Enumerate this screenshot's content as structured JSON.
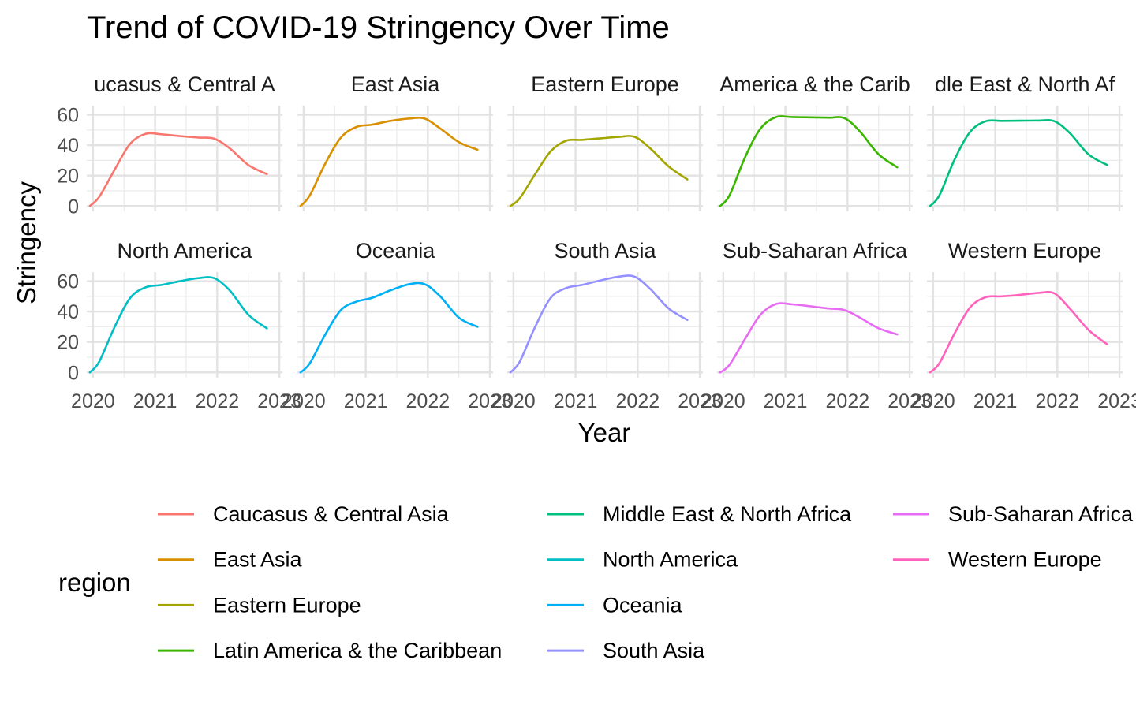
{
  "chart_data": {
    "type": "line",
    "title": "Trend of COVID-19 Stringency Over Time",
    "xlabel": "Year",
    "ylabel": "Stringency",
    "x_ticks": [
      2020,
      2021,
      2022,
      2023
    ],
    "y_ticks": [
      0,
      20,
      40,
      60
    ],
    "xlim": [
      2019.9,
      2023.05
    ],
    "ylim": [
      -3.5,
      66
    ],
    "grid": true,
    "legend_title": "region",
    "legend_position": "bottom",
    "facets": [
      {
        "name": "Caucasus & Central Asia",
        "strip_label": "ucasus & Central A",
        "color": "#F8766D",
        "x": [
          2019.95,
          2020.1,
          2020.35,
          2020.6,
          2020.85,
          2021.1,
          2021.4,
          2021.7,
          2021.95,
          2022.2,
          2022.5,
          2022.8
        ],
        "y": [
          0,
          6,
          24,
          41,
          47.5,
          47.2,
          46,
          45,
          44.3,
          38,
          27,
          21
        ]
      },
      {
        "name": "East Asia",
        "strip_label": "East Asia",
        "color": "#D89000",
        "x": [
          2019.95,
          2020.1,
          2020.35,
          2020.6,
          2020.85,
          2021.1,
          2021.4,
          2021.7,
          2021.95,
          2022.2,
          2022.5,
          2022.8
        ],
        "y": [
          0,
          7,
          28,
          45,
          52,
          53.5,
          56,
          57.5,
          57.5,
          51,
          42,
          37
        ]
      },
      {
        "name": "Eastern Europe",
        "strip_label": "Eastern Europe",
        "color": "#A3A500",
        "x": [
          2019.95,
          2020.1,
          2020.35,
          2020.6,
          2020.85,
          2021.1,
          2021.4,
          2021.7,
          2021.95,
          2022.2,
          2022.5,
          2022.8
        ],
        "y": [
          0,
          5,
          21,
          36,
          43,
          43.5,
          44.5,
          45.5,
          45.5,
          38,
          26,
          17.5
        ]
      },
      {
        "name": "Latin America & the Caribbean",
        "strip_label": "America & the Carib",
        "color": "#39B600",
        "x": [
          2019.95,
          2020.1,
          2020.35,
          2020.6,
          2020.85,
          2021.1,
          2021.4,
          2021.7,
          2021.95,
          2022.2,
          2022.5,
          2022.8
        ],
        "y": [
          0,
          7,
          32,
          51,
          58.5,
          58.5,
          58.3,
          58.1,
          57.8,
          49,
          34,
          25.5
        ]
      },
      {
        "name": "Middle East & North Africa",
        "strip_label": "dle East & North Af",
        "color": "#00BF7D",
        "x": [
          2019.95,
          2020.1,
          2020.35,
          2020.6,
          2020.85,
          2021.1,
          2021.4,
          2021.7,
          2021.95,
          2022.2,
          2022.5,
          2022.8
        ],
        "y": [
          0,
          7,
          31,
          49,
          55.8,
          56,
          56.1,
          56.2,
          55.8,
          48,
          34,
          27
        ]
      },
      {
        "name": "North America",
        "strip_label": "North America",
        "color": "#00BFC4",
        "x": [
          2019.95,
          2020.1,
          2020.35,
          2020.6,
          2020.85,
          2021.1,
          2021.4,
          2021.7,
          2021.95,
          2022.2,
          2022.5,
          2022.8
        ],
        "y": [
          0,
          7,
          30,
          49,
          56,
          57.5,
          60,
          62,
          62,
          54,
          38,
          29
        ]
      },
      {
        "name": "Oceania",
        "strip_label": "Oceania",
        "color": "#00B0F6",
        "x": [
          2019.95,
          2020.1,
          2020.35,
          2020.6,
          2020.85,
          2021.1,
          2021.4,
          2021.7,
          2021.95,
          2022.2,
          2022.5,
          2022.8
        ],
        "y": [
          0,
          6,
          25,
          41,
          46.5,
          49,
          54,
          58,
          58,
          50,
          36,
          30
        ]
      },
      {
        "name": "South Asia",
        "strip_label": "South Asia",
        "color": "#9590FF",
        "x": [
          2019.95,
          2020.1,
          2020.35,
          2020.6,
          2020.85,
          2021.1,
          2021.4,
          2021.7,
          2021.95,
          2022.2,
          2022.5,
          2022.8
        ],
        "y": [
          0,
          7,
          30,
          49,
          55.5,
          57.5,
          60.5,
          63,
          63,
          55,
          42,
          34.5
        ]
      },
      {
        "name": "Sub-Saharan Africa",
        "strip_label": "Sub-Saharan Africa",
        "color": "#E76BF3",
        "x": [
          2019.95,
          2020.1,
          2020.35,
          2020.6,
          2020.85,
          2021.1,
          2021.4,
          2021.7,
          2021.95,
          2022.2,
          2022.5,
          2022.8
        ],
        "y": [
          0,
          5,
          22,
          38,
          45,
          44.8,
          43.5,
          42,
          41,
          36,
          29,
          25
        ]
      },
      {
        "name": "Western Europe",
        "strip_label": "Western Europe",
        "color": "#FF62BC",
        "x": [
          2019.95,
          2020.1,
          2020.35,
          2020.6,
          2020.85,
          2021.1,
          2021.4,
          2021.7,
          2021.95,
          2022.2,
          2022.5,
          2022.8
        ],
        "y": [
          0,
          6,
          26,
          43,
          49.5,
          50,
          51,
          52.3,
          52,
          42,
          28,
          18.5
        ]
      }
    ],
    "legend_columns": [
      [
        "Caucasus & Central Asia",
        "East Asia",
        "Eastern Europe",
        "Latin America & the Caribbean"
      ],
      [
        "Middle East & North Africa",
        "North America",
        "Oceania",
        "South Asia"
      ],
      [
        "Sub-Saharan Africa",
        "Western Europe"
      ]
    ]
  }
}
